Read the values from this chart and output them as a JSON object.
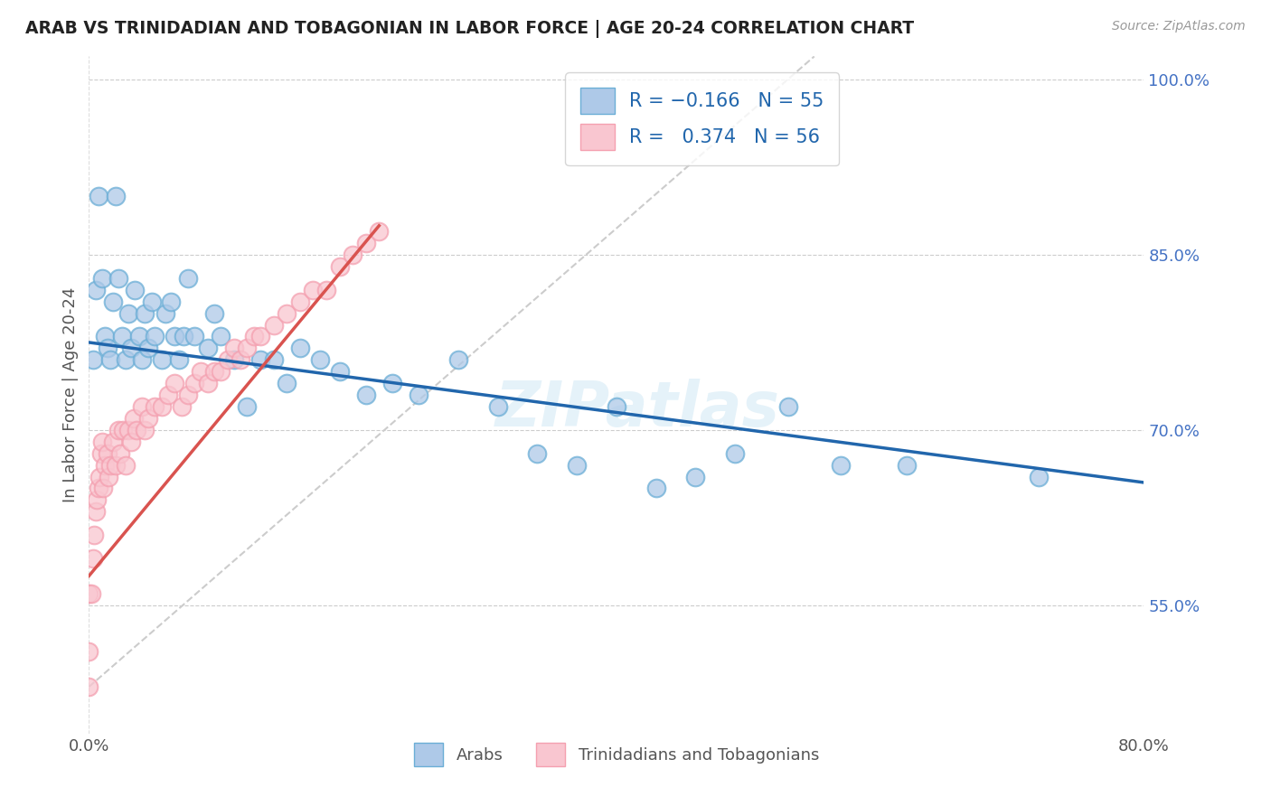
{
  "title": "ARAB VS TRINIDADIAN AND TOBAGONIAN IN LABOR FORCE | AGE 20-24 CORRELATION CHART",
  "source": "Source: ZipAtlas.com",
  "ylabel": "In Labor Force | Age 20-24",
  "xlim": [
    0.0,
    0.8
  ],
  "ylim": [
    0.44,
    1.02
  ],
  "x_ticks": [
    0.0,
    0.8
  ],
  "x_tick_labels": [
    "0.0%",
    "80.0%"
  ],
  "y_ticks": [
    0.55,
    0.7,
    0.85,
    1.0
  ],
  "y_tick_labels": [
    "55.0%",
    "70.0%",
    "85.0%",
    "100.0%"
  ],
  "arab_R": -0.166,
  "arab_N": 55,
  "tnt_R": 0.374,
  "tnt_N": 56,
  "arab_color": "#6baed6",
  "arab_fill": "#aec9e8",
  "tnt_color": "#f4a0b0",
  "tnt_fill": "#f9c6d0",
  "trend_arab_color": "#2166ac",
  "trend_tnt_color": "#d9534f",
  "watermark": "ZIPatlas",
  "legend_arab": "Arabs",
  "legend_tnt": "Trinidadians and Tobagonians",
  "arab_x": [
    0.003,
    0.005,
    0.007,
    0.01,
    0.012,
    0.014,
    0.016,
    0.018,
    0.02,
    0.022,
    0.025,
    0.028,
    0.03,
    0.032,
    0.035,
    0.038,
    0.04,
    0.042,
    0.045,
    0.048,
    0.05,
    0.055,
    0.058,
    0.062,
    0.065,
    0.068,
    0.072,
    0.075,
    0.08,
    0.09,
    0.095,
    0.1,
    0.11,
    0.12,
    0.13,
    0.14,
    0.15,
    0.16,
    0.175,
    0.19,
    0.21,
    0.23,
    0.25,
    0.28,
    0.31,
    0.34,
    0.37,
    0.4,
    0.43,
    0.46,
    0.49,
    0.53,
    0.57,
    0.62,
    0.72
  ],
  "arab_y": [
    0.76,
    0.82,
    0.9,
    0.83,
    0.78,
    0.77,
    0.76,
    0.81,
    0.9,
    0.83,
    0.78,
    0.76,
    0.8,
    0.77,
    0.82,
    0.78,
    0.76,
    0.8,
    0.77,
    0.81,
    0.78,
    0.76,
    0.8,
    0.81,
    0.78,
    0.76,
    0.78,
    0.83,
    0.78,
    0.77,
    0.8,
    0.78,
    0.76,
    0.72,
    0.76,
    0.76,
    0.74,
    0.77,
    0.76,
    0.75,
    0.73,
    0.74,
    0.73,
    0.76,
    0.72,
    0.68,
    0.67,
    0.72,
    0.65,
    0.66,
    0.68,
    0.72,
    0.67,
    0.67,
    0.66
  ],
  "tnt_x": [
    0.0,
    0.0,
    0.0,
    0.002,
    0.003,
    0.004,
    0.005,
    0.006,
    0.007,
    0.008,
    0.009,
    0.01,
    0.011,
    0.012,
    0.014,
    0.015,
    0.016,
    0.018,
    0.02,
    0.022,
    0.024,
    0.026,
    0.028,
    0.03,
    0.032,
    0.034,
    0.036,
    0.04,
    0.042,
    0.045,
    0.05,
    0.055,
    0.06,
    0.065,
    0.07,
    0.075,
    0.08,
    0.085,
    0.09,
    0.095,
    0.1,
    0.105,
    0.11,
    0.115,
    0.12,
    0.125,
    0.13,
    0.14,
    0.15,
    0.16,
    0.17,
    0.18,
    0.19,
    0.2,
    0.21,
    0.22
  ],
  "tnt_y": [
    0.51,
    0.56,
    0.48,
    0.56,
    0.59,
    0.61,
    0.63,
    0.64,
    0.65,
    0.66,
    0.68,
    0.69,
    0.65,
    0.67,
    0.68,
    0.66,
    0.67,
    0.69,
    0.67,
    0.7,
    0.68,
    0.7,
    0.67,
    0.7,
    0.69,
    0.71,
    0.7,
    0.72,
    0.7,
    0.71,
    0.72,
    0.72,
    0.73,
    0.74,
    0.72,
    0.73,
    0.74,
    0.75,
    0.74,
    0.75,
    0.75,
    0.76,
    0.77,
    0.76,
    0.77,
    0.78,
    0.78,
    0.79,
    0.8,
    0.81,
    0.82,
    0.82,
    0.84,
    0.85,
    0.86,
    0.87
  ]
}
